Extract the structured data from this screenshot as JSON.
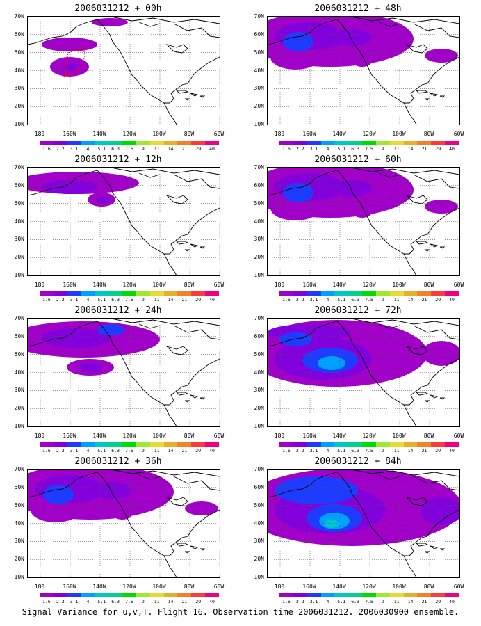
{
  "caption": "Signal Variance for u,v,T. Flight 16. Observation time 2006031212. 2006030900 ensemble.",
  "lat_labels": [
    "70N",
    "60N",
    "50N",
    "40N",
    "30N",
    "20N",
    "10N"
  ],
  "lon_labels": [
    "180",
    "160W",
    "140W",
    "120W",
    "100W",
    "80W",
    "60W"
  ],
  "scale_labels": [
    "1.6",
    "2.2",
    "3.1",
    "4",
    "5.1",
    "6.3",
    "7.5",
    "9",
    "11",
    "14",
    "21",
    "29",
    "40"
  ],
  "scale_colors": [
    "#a000c8",
    "#8200dc",
    "#1e3cff",
    "#00a0ff",
    "#00c8c8",
    "#00d28c",
    "#00dc00",
    "#a0e632",
    "#e6dc32",
    "#e6af2d",
    "#f08228",
    "#fa3c3c",
    "#f00082"
  ],
  "panels": [
    {
      "title": "2006031212 + 00h",
      "intensity": 0
    },
    {
      "title": "2006031212 + 12h",
      "intensity": 1
    },
    {
      "title": "2006031212 + 24h",
      "intensity": 2
    },
    {
      "title": "2006031212 + 36h",
      "intensity": 3
    },
    {
      "title": "2006031212 + 48h",
      "intensity": 3
    },
    {
      "title": "2006031212 + 60h",
      "intensity": 3
    },
    {
      "title": "2006031212 + 72h",
      "intensity": 4
    },
    {
      "title": "2006031212 + 84h",
      "intensity": 5
    }
  ],
  "colors": {
    "purple": "#a000c8",
    "violet": "#8200dc",
    "blue": "#1e3cff",
    "cyan": "#00a0ff",
    "teal": "#00c8c8",
    "flight_track": "#ff0000"
  }
}
